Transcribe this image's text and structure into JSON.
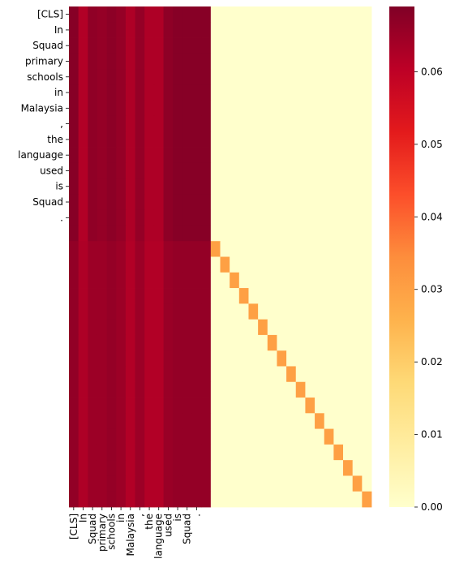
{
  "chart_data": {
    "type": "heatmap",
    "title": "",
    "xlabel": "",
    "ylabel": "",
    "tokens": [
      "[CLS]",
      "In",
      "Squad",
      "primary",
      "schools",
      "in",
      "Malaysia",
      ",",
      "the",
      "language",
      "used",
      "is",
      "Squad",
      "."
    ],
    "x_tick_labels": [
      "[CLS]",
      "In",
      "Squad",
      "primary",
      "schools",
      "in",
      "Malaysia",
      ",",
      "the",
      "language",
      "used",
      "is",
      "Squad",
      "."
    ],
    "y_tick_labels": [
      "[CLS]",
      "In",
      "Squad",
      "primary",
      "schools",
      "in",
      "Malaysia",
      ",",
      "the",
      "language",
      "used",
      "is",
      "Squad",
      "."
    ],
    "n_rows": 32,
    "n_cols": 17,
    "structure": "rows 0-14 attend only to columns 0-14; rows 15-31 attend to columns 0-14 plus a diagonal entry (row r -> column r-1? see col_diag offset); all other cells 0",
    "upper_row_values": [
      0.068,
      0.062,
      0.0668,
      0.066,
      0.0672,
      0.066,
      0.0625,
      0.066,
      0.0625,
      0.0625,
      0.067,
      0.068,
      0.068,
      0.068,
      0.068,
      0.0,
      0.0
    ],
    "lower_row_values": [
      0.0665,
      0.0625,
      0.065,
      0.065,
      0.066,
      0.065,
      0.062,
      0.065,
      0.062,
      0.062,
      0.0655,
      0.0662,
      0.0662,
      0.0662,
      0.0662,
      0.0,
      0.0
    ],
    "diagonal_value": 0.03,
    "upper_block_rows": 15,
    "lower_block_rows": 17,
    "context_cols": 15,
    "diagonal_cols": 17,
    "colorbar": {
      "min": 0.0,
      "max": 0.069,
      "ticks": [
        "0.00",
        "0.01",
        "0.02",
        "0.03",
        "0.04",
        "0.05",
        "0.06"
      ],
      "tick_values": [
        0.0,
        0.01,
        0.02,
        0.03,
        0.04,
        0.05,
        0.06
      ],
      "colormap": "YlOrRd"
    }
  }
}
